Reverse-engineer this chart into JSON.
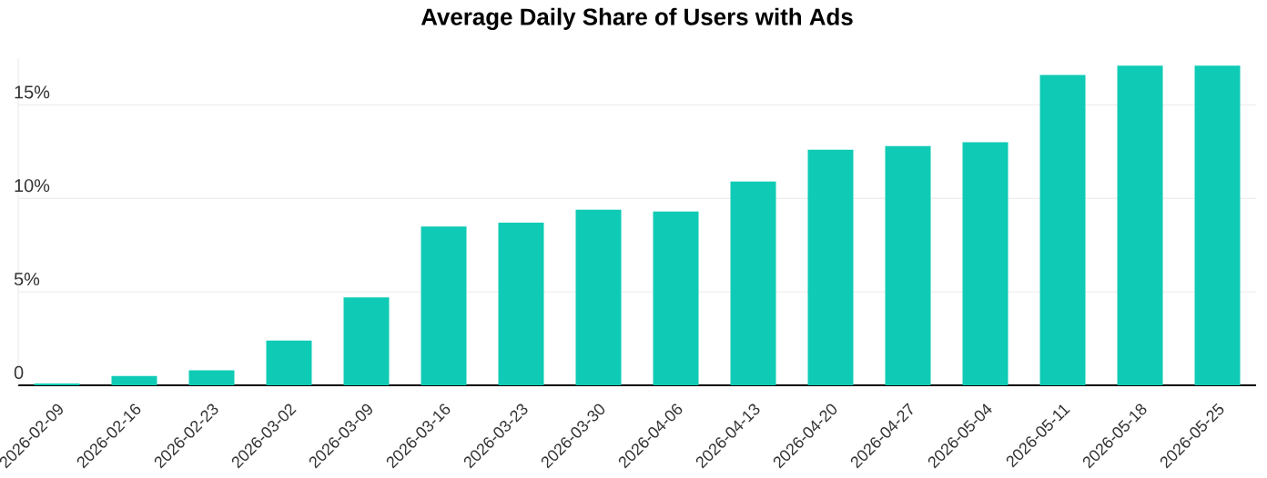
{
  "chart_data": {
    "type": "bar",
    "title": "Average Daily Share of Users with Ads",
    "categories": [
      "2026-02-09",
      "2026-02-16",
      "2026-02-23",
      "2026-03-02",
      "2026-03-09",
      "2026-03-16",
      "2026-03-23",
      "2026-03-30",
      "2026-04-06",
      "2026-04-13",
      "2026-04-20",
      "2026-04-27",
      "2026-05-04",
      "2026-05-11",
      "2026-05-18",
      "2026-05-25"
    ],
    "values": [
      0.1,
      0.5,
      0.8,
      2.4,
      4.7,
      8.5,
      8.7,
      9.4,
      9.3,
      10.9,
      12.6,
      12.8,
      13.0,
      16.6,
      17.1,
      17.1
    ],
    "color": "#0fcbb5",
    "ylim": [
      0,
      17.5
    ],
    "yticks": [
      0,
      {
        "value": 5,
        "label": "5%"
      },
      {
        "value": 10,
        "label": "10%"
      },
      {
        "value": 15,
        "label": "15%"
      }
    ],
    "grid": "y"
  }
}
